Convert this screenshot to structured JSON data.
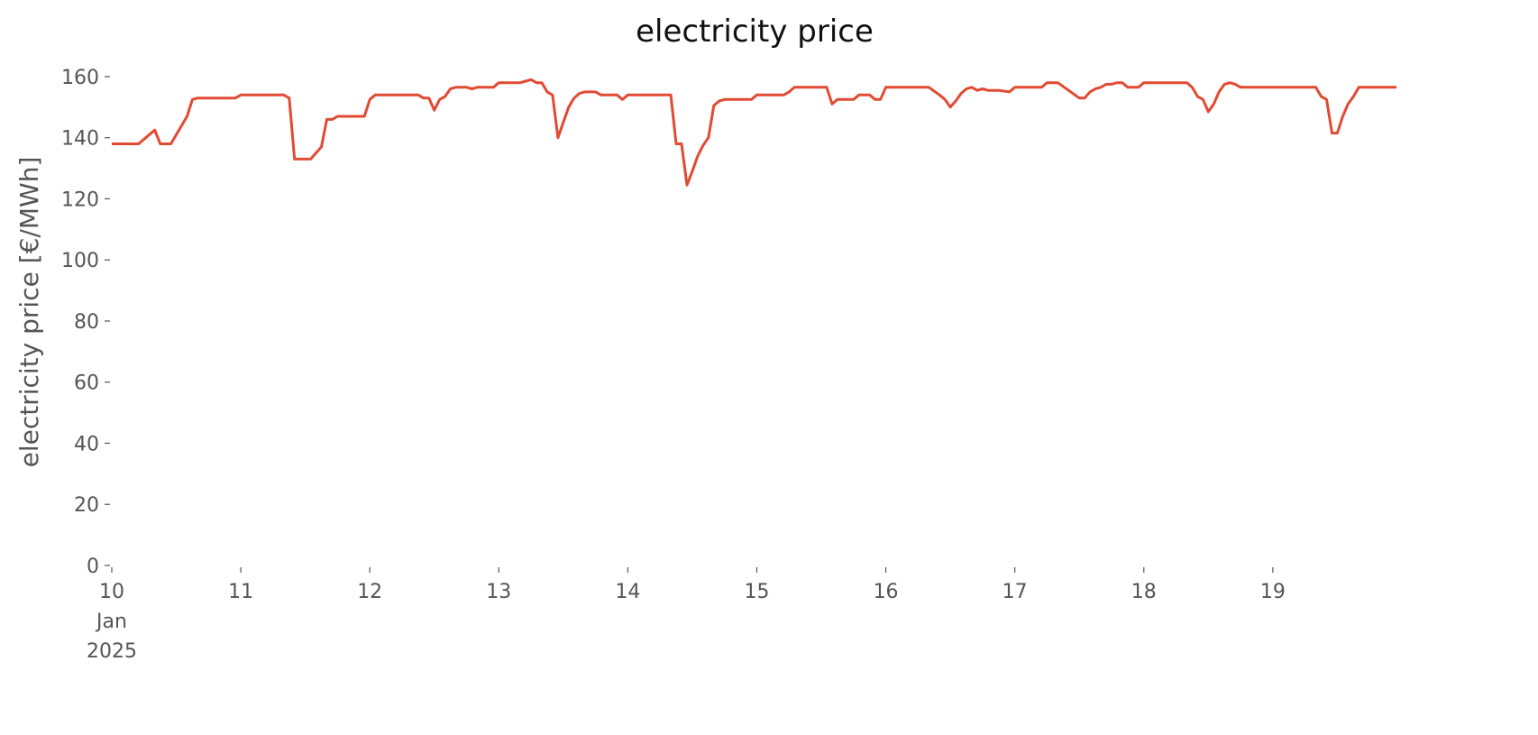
{
  "chart_data": {
    "type": "line",
    "title": "electricity price",
    "ylabel": "electricity price [€/MWh]",
    "series": [
      {
        "name": "electricity price",
        "color": "#e24a33",
        "x": [
          "2025-01-10T00:00",
          "2025-01-10T05:00",
          "2025-01-10T08:00",
          "2025-01-10T09:00",
          "2025-01-10T11:00",
          "2025-01-10T14:00",
          "2025-01-10T15:00",
          "2025-01-10T16:00",
          "2025-01-10T23:00",
          "2025-01-11T00:00",
          "2025-01-11T08:00",
          "2025-01-11T09:00",
          "2025-01-11T10:00",
          "2025-01-11T13:00",
          "2025-01-11T15:00",
          "2025-01-11T16:00",
          "2025-01-11T17:00",
          "2025-01-11T18:00",
          "2025-01-11T23:00",
          "2025-01-12T00:00",
          "2025-01-12T01:00",
          "2025-01-12T09:00",
          "2025-01-12T10:00",
          "2025-01-12T11:00",
          "2025-01-12T12:00",
          "2025-01-12T13:00",
          "2025-01-12T14:00",
          "2025-01-12T15:00",
          "2025-01-12T16:00",
          "2025-01-12T18:00",
          "2025-01-12T19:00",
          "2025-01-12T20:00",
          "2025-01-12T23:00",
          "2025-01-13T00:00",
          "2025-01-13T04:00",
          "2025-01-13T05:00",
          "2025-01-13T06:00",
          "2025-01-13T07:00",
          "2025-01-13T08:00",
          "2025-01-13T09:00",
          "2025-01-13T10:00",
          "2025-01-13T11:00",
          "2025-01-13T12:00",
          "2025-01-13T13:00",
          "2025-01-13T14:00",
          "2025-01-13T15:00",
          "2025-01-13T16:00",
          "2025-01-13T18:00",
          "2025-01-13T19:00",
          "2025-01-13T22:00",
          "2025-01-13T23:00",
          "2025-01-14T00:00",
          "2025-01-14T08:00",
          "2025-01-14T09:00",
          "2025-01-14T10:00",
          "2025-01-14T11:00",
          "2025-01-14T12:00",
          "2025-01-14T13:00",
          "2025-01-14T14:00",
          "2025-01-14T15:00",
          "2025-01-14T16:00",
          "2025-01-14T17:00",
          "2025-01-14T18:00",
          "2025-01-14T23:00",
          "2025-01-15T00:00",
          "2025-01-15T05:00",
          "2025-01-15T06:00",
          "2025-01-15T07:00",
          "2025-01-15T13:00",
          "2025-01-15T14:00",
          "2025-01-15T15:00",
          "2025-01-15T18:00",
          "2025-01-15T19:00",
          "2025-01-15T21:00",
          "2025-01-15T22:00",
          "2025-01-15T23:00",
          "2025-01-16T00:00",
          "2025-01-16T08:00",
          "2025-01-16T10:00",
          "2025-01-16T11:00",
          "2025-01-16T12:00",
          "2025-01-16T13:00",
          "2025-01-16T14:00",
          "2025-01-16T15:00",
          "2025-01-16T16:00",
          "2025-01-16T17:00",
          "2025-01-16T18:00",
          "2025-01-16T19:00",
          "2025-01-16T21:00",
          "2025-01-16T23:00",
          "2025-01-17T00:00",
          "2025-01-17T05:00",
          "2025-01-17T06:00",
          "2025-01-17T08:00",
          "2025-01-17T10:00",
          "2025-01-17T12:00",
          "2025-01-17T13:00",
          "2025-01-17T14:00",
          "2025-01-17T15:00",
          "2025-01-17T16:00",
          "2025-01-17T17:00",
          "2025-01-17T18:00",
          "2025-01-17T19:00",
          "2025-01-17T20:00",
          "2025-01-17T21:00",
          "2025-01-17T23:00",
          "2025-01-18T00:00",
          "2025-01-18T08:00",
          "2025-01-18T09:00",
          "2025-01-18T10:00",
          "2025-01-18T11:00",
          "2025-01-18T12:00",
          "2025-01-18T13:00",
          "2025-01-18T14:00",
          "2025-01-18T15:00",
          "2025-01-18T16:00",
          "2025-01-18T17:00",
          "2025-01-18T18:00",
          "2025-01-19T08:00",
          "2025-01-19T09:00",
          "2025-01-19T10:00",
          "2025-01-19T11:00",
          "2025-01-19T12:00",
          "2025-01-19T13:00",
          "2025-01-19T14:00",
          "2025-01-19T15:00",
          "2025-01-19T16:00",
          "2025-01-19T23:00"
        ],
        "values": [
          138,
          138,
          142.5,
          138,
          138,
          147,
          152.5,
          153,
          153,
          154,
          154,
          153,
          133,
          133,
          137,
          146,
          146,
          147,
          147,
          152.5,
          154,
          154,
          153,
          153,
          149,
          152.5,
          153.5,
          156,
          156.5,
          156.5,
          156,
          156.5,
          156.5,
          158,
          158,
          158.5,
          159,
          158,
          158,
          155,
          154,
          140,
          145,
          150,
          153,
          154.5,
          155,
          155,
          154,
          154,
          152.5,
          154,
          154,
          138,
          138,
          124.5,
          129,
          134,
          137.5,
          140,
          150.5,
          152,
          152.5,
          152.5,
          154,
          154,
          155,
          156.5,
          156.5,
          151,
          152.5,
          152.5,
          154,
          154,
          152.5,
          152.5,
          156.5,
          156.5,
          154,
          152.5,
          150,
          152,
          154.5,
          156,
          156.5,
          155.5,
          156,
          155.5,
          155.5,
          155,
          156.5,
          156.5,
          158,
          158,
          155.5,
          153,
          153,
          155,
          156,
          156.5,
          157.5,
          157.5,
          158,
          158,
          156.5,
          156.5,
          158,
          158,
          156.5,
          153.5,
          152.5,
          148.5,
          151,
          155,
          157.5,
          158,
          157.5,
          156.5,
          156.5,
          153.5,
          152.5,
          141.5,
          141.5,
          147,
          151,
          153.5,
          156.5,
          156.5
        ]
      }
    ],
    "xlim": [
      "2025-01-10T00:00",
      "2025-01-19T23:00"
    ],
    "xticks": [
      {
        "value": "2025-01-10T00:00",
        "label": "10\nJan\n2025"
      },
      {
        "value": "2025-01-11T00:00",
        "label": "11"
      },
      {
        "value": "2025-01-12T00:00",
        "label": "12"
      },
      {
        "value": "2025-01-13T00:00",
        "label": "13"
      },
      {
        "value": "2025-01-14T00:00",
        "label": "14"
      },
      {
        "value": "2025-01-15T00:00",
        "label": "15"
      },
      {
        "value": "2025-01-16T00:00",
        "label": "16"
      },
      {
        "value": "2025-01-17T00:00",
        "label": "17"
      },
      {
        "value": "2025-01-18T00:00",
        "label": "18"
      },
      {
        "value": "2025-01-19T00:00",
        "label": "19"
      }
    ],
    "ylim": [
      0,
      165
    ],
    "yticks": [
      0,
      20,
      40,
      60,
      80,
      100,
      120,
      140,
      160
    ],
    "grid": false
  }
}
